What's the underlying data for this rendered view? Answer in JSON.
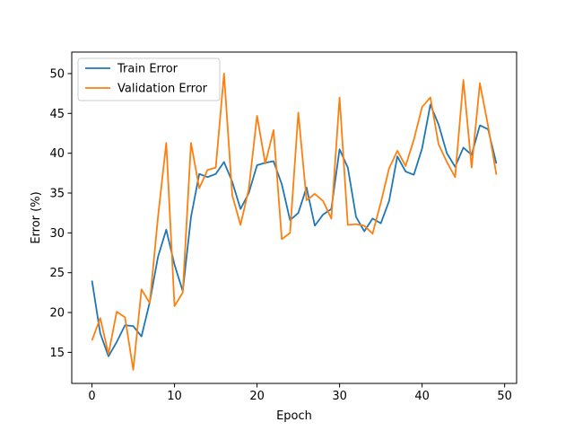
{
  "chart_data": {
    "type": "line",
    "title": "",
    "xlabel": "Epoch",
    "ylabel": "Error (%)",
    "xlim": [
      -2.45,
      51.45
    ],
    "ylim": [
      11.1,
      52.7
    ],
    "xticks": [
      0,
      10,
      20,
      30,
      40,
      50
    ],
    "yticks": [
      15,
      20,
      25,
      30,
      35,
      40,
      45,
      50
    ],
    "grid": false,
    "legend_position": "top-left",
    "x": [
      0,
      1,
      2,
      3,
      4,
      5,
      6,
      7,
      8,
      9,
      10,
      11,
      12,
      13,
      14,
      15,
      16,
      17,
      18,
      19,
      20,
      21,
      22,
      23,
      24,
      25,
      26,
      27,
      28,
      29,
      30,
      31,
      32,
      33,
      34,
      35,
      36,
      37,
      38,
      39,
      40,
      41,
      42,
      43,
      44,
      45,
      46,
      47,
      48,
      49
    ],
    "series": [
      {
        "name": "Train Error",
        "color": "#1f77b4",
        "values": [
          24.0,
          17.4,
          14.5,
          16.3,
          18.4,
          18.3,
          17.0,
          21.3,
          27.0,
          30.4,
          26.0,
          22.7,
          32.0,
          37.4,
          37.0,
          37.4,
          38.9,
          36.4,
          33.0,
          35.0,
          38.5,
          38.8,
          39.0,
          36.1,
          31.6,
          32.5,
          35.7,
          30.9,
          32.3,
          33.0,
          40.5,
          38.2,
          32.0,
          30.2,
          31.8,
          31.2,
          34.0,
          39.6,
          37.7,
          37.3,
          40.6,
          46.1,
          43.6,
          40.0,
          38.3,
          40.7,
          39.8,
          43.5,
          43.0,
          38.7
        ]
      },
      {
        "name": "Validation Error",
        "color": "#ff7f0e",
        "values": [
          16.5,
          19.3,
          14.8,
          20.1,
          19.4,
          12.8,
          22.9,
          21.2,
          32.0,
          41.3,
          20.8,
          22.5,
          41.3,
          35.6,
          37.9,
          38.2,
          50.0,
          34.7,
          31.0,
          35.5,
          44.7,
          38.7,
          42.9,
          29.2,
          30.0,
          45.1,
          34.1,
          34.9,
          34.0,
          31.8,
          47.0,
          31.0,
          31.1,
          30.9,
          29.9,
          33.8,
          38.1,
          40.3,
          38.4,
          41.7,
          45.8,
          47.0,
          41.1,
          38.9,
          37.0,
          49.2,
          38.2,
          48.8,
          43.4,
          37.3
        ]
      }
    ]
  }
}
